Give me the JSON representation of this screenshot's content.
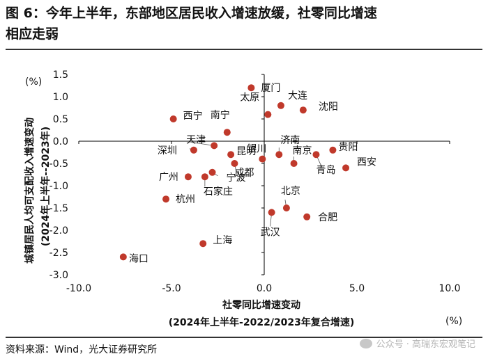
{
  "header": {
    "title_line1": "图 6：今年上半年，东部地区居民收入增速放缓，社零同比增速",
    "title_line2": "相应走弱"
  },
  "footer": {
    "source": "资料来源：Wind，光大证券研究所",
    "watermark": "公众号 · 高瑞东宏观笔记"
  },
  "chart_data": {
    "type": "scatter",
    "title": "今年上半年，东部地区居民收入增速放缓，社零同比增速相应走弱",
    "xlabel_line1": "社零同比增速变动",
    "xlabel_line2": "(2024年上半年-2022/2023年复合增速)",
    "x_unit": "(%)",
    "ylabel_line1": "城镇居民人均可支配收入增速变动",
    "ylabel_line2": "(2024年上半年--2023年)",
    "y_unit": "(%)",
    "xlim": [
      -10,
      10
    ],
    "ylim": [
      -3,
      1.5
    ],
    "x_ticks": [
      -10,
      -5,
      0,
      5,
      10
    ],
    "x_tick_labels": [
      "-10.0",
      "-5.0",
      "0.0",
      "5.0",
      "10.0"
    ],
    "y_ticks": [
      1.5,
      1.0,
      0.5,
      0,
      -0.5,
      -1.0,
      -1.5,
      -2.0,
      -2.5,
      -3.0
    ],
    "y_tick_labels": [
      "1.5",
      "1.0",
      "0.5",
      "0.0",
      "-0.5",
      "-1.0",
      "-1.5",
      "-2.0",
      "-2.5",
      "-3.0"
    ],
    "marker_color": "#c0392b",
    "points": [
      {
        "name": "厦门",
        "x": -0.7,
        "y": 1.2
      },
      {
        "name": "大连",
        "x": 0.9,
        "y": 0.8
      },
      {
        "name": "沈阳",
        "x": 2.1,
        "y": 0.7
      },
      {
        "name": "太原",
        "x": 0.2,
        "y": 0.6
      },
      {
        "name": "西宁",
        "x": -4.9,
        "y": 0.5
      },
      {
        "name": "南宁",
        "x": -2.0,
        "y": 0.2
      },
      {
        "name": "天津",
        "x": -2.7,
        "y": -0.1
      },
      {
        "name": "深圳",
        "x": -3.8,
        "y": -0.2
      },
      {
        "name": "昆明",
        "x": -1.8,
        "y": -0.3
      },
      {
        "name": "济南",
        "x": 0.8,
        "y": -0.3
      },
      {
        "name": "南京",
        "x": 1.6,
        "y": -0.5
      },
      {
        "name": "贵阳",
        "x": 3.7,
        "y": -0.2
      },
      {
        "name": "青岛",
        "x": 2.8,
        "y": -0.3
      },
      {
        "name": "西安",
        "x": 4.4,
        "y": -0.6
      },
      {
        "name": "银川",
        "x": -0.1,
        "y": -0.4
      },
      {
        "name": "成都",
        "x": -1.6,
        "y": -0.5
      },
      {
        "name": "广州",
        "x": -4.1,
        "y": -0.8
      },
      {
        "name": "宁波",
        "x": -2.8,
        "y": -0.7
      },
      {
        "name": "石家庄",
        "x": -3.2,
        "y": -0.8
      },
      {
        "name": "杭州",
        "x": -5.3,
        "y": -1.3
      },
      {
        "name": "北京",
        "x": 1.2,
        "y": -1.5
      },
      {
        "name": "武汉",
        "x": 0.4,
        "y": -1.6
      },
      {
        "name": "合肥",
        "x": 2.3,
        "y": -1.7
      },
      {
        "name": "上海",
        "x": -3.3,
        "y": -2.3
      },
      {
        "name": "海口",
        "x": -7.6,
        "y": -2.6
      }
    ]
  }
}
